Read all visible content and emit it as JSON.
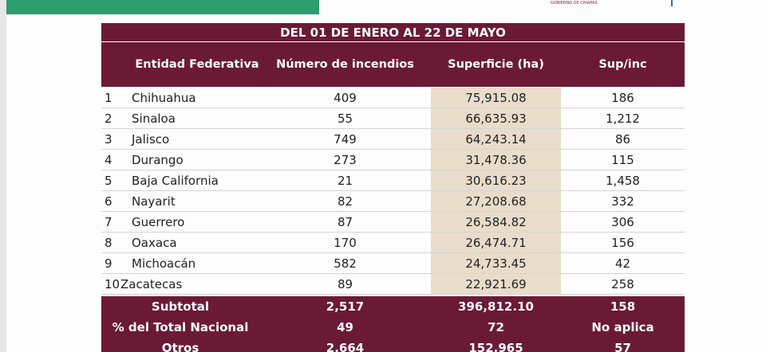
{
  "header": {
    "logo_text": "GOBIERNO DE CHIAPAS"
  },
  "table": {
    "title": "DEL 01 DE ENERO AL 22 DE MAYO",
    "headers": [
      "Entidad Federativa",
      "Número de incendios",
      "Superficie (ha)",
      "Sup/inc"
    ],
    "rows": [
      [
        "1",
        "Chihuahua",
        "409",
        "75,915.08",
        "186"
      ],
      [
        "2",
        "Sinaloa",
        "55",
        "66,635.93",
        "1,212"
      ],
      [
        "3",
        "Jalisco",
        "749",
        "64,243.14",
        "86"
      ],
      [
        "4",
        "Durango",
        "273",
        "31,478.36",
        "115"
      ],
      [
        "5",
        "Baja California",
        "21",
        "30,616.23",
        "1,458"
      ],
      [
        "6",
        "Nayarit",
        "82",
        "27,208.68",
        "332"
      ],
      [
        "7",
        "Guerrero",
        "87",
        "26,584.82",
        "306"
      ],
      [
        "8",
        "Oaxaca",
        "170",
        "26,474.71",
        "156"
      ],
      [
        "9",
        "Michoacán",
        "582",
        "24,733.45",
        "42"
      ],
      [
        "10",
        "Zacatecas",
        "89",
        "22,921.69",
        "258"
      ]
    ],
    "footer": [
      [
        "Subtotal",
        "2,517",
        "396,812.10",
        "158"
      ],
      [
        "% del Total Nacional",
        "49",
        "72",
        "No aplica"
      ],
      [
        "Otros",
        "2,664",
        "152,965",
        "57"
      ]
    ]
  }
}
